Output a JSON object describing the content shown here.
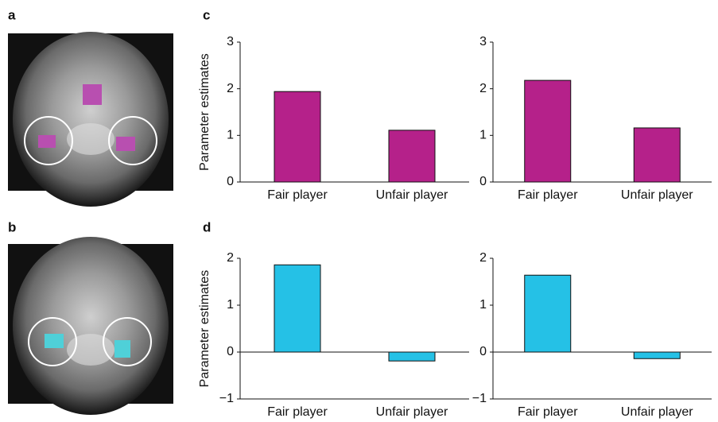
{
  "panel_labels": [
    "a",
    "b",
    "c",
    "d"
  ],
  "chart_data": [
    {
      "type": "bar",
      "y_label": "Parameter estimates",
      "categories": [
        "Fair player",
        "Unfair player"
      ],
      "values": [
        1.94,
        1.11
      ],
      "color": "#b5218a",
      "ylim": [
        0,
        3
      ],
      "yticks": [
        0,
        1,
        2,
        3
      ]
    },
    {
      "type": "bar",
      "categories": [
        "Fair player",
        "Unfair player"
      ],
      "values": [
        2.18,
        1.16
      ],
      "color": "#b5218a",
      "ylim": [
        0,
        3
      ],
      "yticks": [
        0,
        1,
        2,
        3
      ]
    },
    {
      "type": "bar",
      "y_label": "Parameter estimates",
      "categories": [
        "Fair player",
        "Unfair player"
      ],
      "values": [
        1.86,
        -0.19
      ],
      "color": "#25c1e6",
      "ylim": [
        -1,
        2
      ],
      "yticks": [
        {
          "value": -1,
          "label": "−1"
        },
        0,
        1,
        2
      ]
    },
    {
      "type": "bar",
      "categories": [
        "Fair player",
        "Unfair player"
      ],
      "values": [
        1.64,
        -0.14
      ],
      "color": "#25c1e6",
      "ylim": [
        -1,
        2
      ],
      "yticks": [
        {
          "value": -1,
          "label": "−1"
        },
        0,
        1,
        2
      ]
    }
  ]
}
